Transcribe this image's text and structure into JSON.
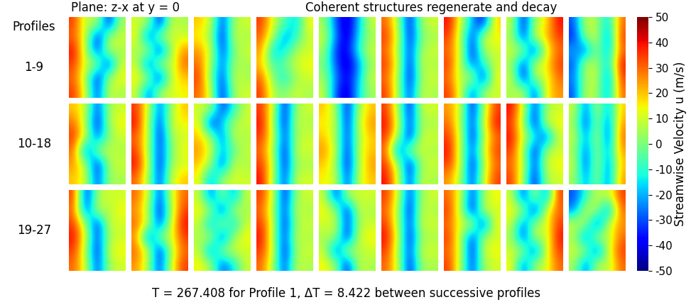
{
  "chart_data": {
    "type": "heatmap",
    "subtitle": "Plane: z-x at y = 0",
    "title": "Coherent structures regenerate and decay",
    "row_header": "Profiles",
    "row_labels": [
      "1-9",
      "10-18",
      "19-27"
    ],
    "xlabel": "T = 267.408 for Profile 1, ΔT = 8.422 between successive profiles",
    "colorbar_label": "Streamwise Velocity u (m/s)",
    "colorbar_range": [
      -50,
      50
    ],
    "colorbar_ticks": [
      -50,
      -40,
      -30,
      -20,
      -10,
      0,
      10,
      20,
      30,
      40,
      50
    ],
    "tick_labels": false,
    "panels": [
      [
        [
          35,
          5,
          10,
          -40,
          5
        ],
        [
          30,
          10,
          -40,
          5,
          10
        ],
        [
          40,
          5,
          -35,
          10,
          5
        ],
        [
          35,
          10,
          5,
          -40,
          10
        ],
        [
          30,
          5,
          -40,
          5,
          15
        ],
        [
          35,
          10,
          -35,
          10,
          5
        ]
      ],
      [
        [
          10,
          5,
          -40,
          10,
          5
        ],
        [
          15,
          -35,
          5,
          10,
          10
        ],
        [
          5,
          10,
          -40,
          5,
          25
        ],
        [
          10,
          -35,
          10,
          5,
          30
        ],
        [
          15,
          5,
          -40,
          10,
          20
        ],
        [
          10,
          -30,
          5,
          10,
          15
        ]
      ],
      [
        [
          20,
          10,
          -35,
          5,
          10
        ],
        [
          15,
          5,
          -40,
          10,
          5
        ],
        [
          25,
          10,
          -35,
          0,
          10
        ],
        [
          30,
          5,
          -30,
          5,
          5
        ],
        [
          35,
          0,
          -35,
          10,
          5
        ],
        [
          30,
          10,
          -40,
          5,
          10
        ]
      ],
      [
        [
          35,
          10,
          -5,
          -20,
          15
        ],
        [
          30,
          5,
          -25,
          -10,
          10
        ],
        [
          25,
          -20,
          -15,
          5,
          10
        ],
        [
          20,
          -10,
          0,
          10,
          15
        ],
        [
          30,
          0,
          -15,
          5,
          10
        ],
        [
          35,
          5,
          0,
          10,
          5
        ]
      ],
      [
        [
          5,
          -30,
          -45,
          -20,
          10
        ],
        [
          10,
          -25,
          -45,
          -15,
          5
        ],
        [
          5,
          -35,
          -40,
          -10,
          10
        ],
        [
          0,
          -30,
          -45,
          -25,
          5
        ],
        [
          5,
          -25,
          -40,
          -20,
          10
        ],
        [
          10,
          -30,
          -45,
          -15,
          5
        ]
      ],
      [
        [
          30,
          5,
          -40,
          5,
          10
        ],
        [
          35,
          10,
          -40,
          0,
          5
        ],
        [
          30,
          5,
          -35,
          5,
          10
        ],
        [
          35,
          10,
          -40,
          10,
          5
        ],
        [
          30,
          5,
          -40,
          5,
          10
        ],
        [
          35,
          5,
          -35,
          10,
          5
        ]
      ],
      [
        [
          40,
          10,
          -20,
          -40,
          20
        ],
        [
          35,
          5,
          -35,
          10,
          15
        ],
        [
          30,
          10,
          -40,
          5,
          10
        ],
        [
          35,
          5,
          -30,
          -10,
          10
        ],
        [
          30,
          5,
          10,
          -40,
          15
        ],
        [
          35,
          10,
          -30,
          5,
          10
        ]
      ],
      [
        [
          10,
          -40,
          5,
          15,
          40
        ],
        [
          5,
          -35,
          10,
          20,
          35
        ],
        [
          10,
          5,
          -40,
          10,
          30
        ],
        [
          5,
          -35,
          10,
          15,
          35
        ],
        [
          10,
          -40,
          5,
          10,
          30
        ],
        [
          5,
          10,
          -35,
          15,
          25
        ]
      ],
      [
        [
          -30,
          10,
          5,
          -20,
          30
        ],
        [
          -35,
          5,
          10,
          -30,
          35
        ],
        [
          -20,
          -30,
          5,
          -25,
          30
        ],
        [
          -30,
          10,
          5,
          -20,
          40
        ],
        [
          -25,
          5,
          10,
          -30,
          35
        ],
        [
          -30,
          10,
          5,
          -25,
          30
        ]
      ],
      [
        [
          20,
          10,
          -35,
          5,
          10
        ],
        [
          30,
          5,
          -40,
          5,
          15
        ],
        [
          35,
          10,
          -30,
          0,
          10
        ],
        [
          30,
          -35,
          5,
          10,
          5
        ],
        [
          25,
          5,
          -40,
          5,
          10
        ],
        [
          20,
          10,
          -35,
          5,
          5
        ]
      ],
      [
        [
          35,
          10,
          -30,
          5,
          20
        ],
        [
          40,
          5,
          -35,
          10,
          15
        ],
        [
          30,
          10,
          -40,
          5,
          10
        ],
        [
          35,
          5,
          -35,
          0,
          15
        ],
        [
          40,
          10,
          -40,
          5,
          10
        ],
        [
          30,
          5,
          -35,
          10,
          20
        ]
      ],
      [
        [
          10,
          5,
          -35,
          -10,
          10
        ],
        [
          15,
          -40,
          -15,
          5,
          10
        ],
        [
          20,
          5,
          -30,
          10,
          5
        ],
        [
          25,
          10,
          -20,
          -5,
          10
        ],
        [
          20,
          5,
          -35,
          10,
          5
        ],
        [
          15,
          -25,
          5,
          10,
          10
        ]
      ],
      [
        [
          35,
          10,
          -40,
          5,
          10
        ],
        [
          40,
          5,
          -40,
          10,
          5
        ],
        [
          35,
          10,
          -35,
          5,
          10
        ],
        [
          30,
          5,
          -40,
          10,
          10
        ],
        [
          35,
          10,
          -40,
          5,
          5
        ],
        [
          40,
          5,
          -35,
          10,
          10
        ]
      ],
      [
        [
          20,
          5,
          -40,
          5,
          20
        ],
        [
          15,
          10,
          -40,
          10,
          25
        ],
        [
          20,
          5,
          -35,
          5,
          20
        ],
        [
          25,
          10,
          -40,
          10,
          20
        ],
        [
          20,
          5,
          -40,
          5,
          25
        ],
        [
          15,
          10,
          -35,
          10,
          20
        ]
      ],
      [
        [
          35,
          5,
          -40,
          10,
          10
        ],
        [
          40,
          10,
          -35,
          5,
          5
        ],
        [
          35,
          5,
          -40,
          10,
          10
        ],
        [
          30,
          -35,
          5,
          10,
          5
        ],
        [
          35,
          5,
          -40,
          5,
          10
        ],
        [
          40,
          10,
          -35,
          10,
          5
        ]
      ],
      [
        [
          25,
          10,
          -40,
          5,
          35
        ],
        [
          30,
          5,
          -35,
          10,
          40
        ],
        [
          35,
          10,
          -40,
          5,
          30
        ],
        [
          40,
          5,
          -30,
          10,
          35
        ],
        [
          35,
          10,
          -40,
          5,
          30
        ],
        [
          25,
          5,
          -35,
          10,
          35
        ]
      ],
      [
        [
          40,
          10,
          -35,
          5,
          10
        ],
        [
          35,
          5,
          -40,
          10,
          15
        ],
        [
          40,
          10,
          -10,
          -35,
          10
        ],
        [
          35,
          5,
          -40,
          5,
          10
        ],
        [
          30,
          10,
          -35,
          10,
          15
        ],
        [
          35,
          5,
          -40,
          5,
          10
        ]
      ],
      [
        [
          10,
          -30,
          10,
          -25,
          20
        ],
        [
          5,
          -35,
          5,
          -30,
          25
        ],
        [
          10,
          -25,
          10,
          -35,
          30
        ],
        [
          5,
          -30,
          5,
          -25,
          25
        ],
        [
          10,
          -35,
          10,
          -30,
          20
        ],
        [
          5,
          -25,
          5,
          -30,
          25
        ]
      ],
      [
        [
          35,
          -40,
          5,
          10,
          10
        ],
        [
          30,
          -35,
          10,
          5,
          15
        ],
        [
          35,
          5,
          -40,
          10,
          10
        ],
        [
          40,
          10,
          -35,
          5,
          10
        ],
        [
          35,
          5,
          -40,
          10,
          15
        ],
        [
          30,
          10,
          -35,
          5,
          10
        ]
      ],
      [
        [
          30,
          10,
          -35,
          10,
          30
        ],
        [
          25,
          5,
          -40,
          5,
          35
        ],
        [
          30,
          10,
          -35,
          10,
          40
        ],
        [
          25,
          -35,
          5,
          10,
          35
        ],
        [
          30,
          10,
          -40,
          5,
          30
        ],
        [
          25,
          5,
          -35,
          10,
          35
        ]
      ],
      [
        [
          10,
          -30,
          5,
          -25,
          10
        ],
        [
          15,
          5,
          -35,
          10,
          5
        ],
        [
          10,
          -25,
          10,
          -20,
          10
        ],
        [
          5,
          10,
          -35,
          5,
          15
        ],
        [
          10,
          -30,
          5,
          10,
          10
        ],
        [
          15,
          5,
          -30,
          -15,
          10
        ]
      ],
      [
        [
          35,
          10,
          -40,
          5,
          10
        ],
        [
          30,
          5,
          -35,
          10,
          5
        ],
        [
          35,
          10,
          -40,
          5,
          10
        ],
        [
          40,
          5,
          -35,
          10,
          5
        ],
        [
          35,
          10,
          -40,
          5,
          10
        ],
        [
          30,
          5,
          -35,
          10,
          5
        ]
      ],
      [
        [
          10,
          -35,
          5,
          10,
          10
        ],
        [
          15,
          5,
          -40,
          10,
          5
        ],
        [
          10,
          10,
          -35,
          5,
          10
        ],
        [
          5,
          5,
          -40,
          10,
          15
        ],
        [
          10,
          -35,
          10,
          5,
          10
        ],
        [
          15,
          5,
          -40,
          10,
          5
        ]
      ],
      [
        [
          35,
          10,
          -35,
          5,
          10
        ],
        [
          30,
          5,
          -40,
          10,
          5
        ],
        [
          35,
          5,
          -35,
          10,
          10
        ],
        [
          40,
          10,
          -40,
          5,
          5
        ],
        [
          35,
          5,
          -35,
          10,
          10
        ],
        [
          30,
          10,
          -40,
          5,
          5
        ]
      ],
      [
        [
          30,
          10,
          -35,
          5,
          15
        ],
        [
          35,
          5,
          -40,
          10,
          10
        ],
        [
          30,
          10,
          10,
          -40,
          15
        ],
        [
          35,
          5,
          -35,
          5,
          10
        ],
        [
          30,
          10,
          -40,
          10,
          15
        ],
        [
          35,
          5,
          -35,
          5,
          10
        ]
      ],
      [
        [
          10,
          -35,
          10,
          -30,
          35
        ],
        [
          15,
          5,
          -40,
          10,
          30
        ],
        [
          10,
          -30,
          5,
          10,
          35
        ],
        [
          5,
          -35,
          10,
          5,
          40
        ],
        [
          10,
          5,
          -35,
          10,
          35
        ],
        [
          15,
          -30,
          5,
          10,
          30
        ]
      ],
      [
        [
          -30,
          -10,
          10,
          5,
          35
        ],
        [
          -25,
          10,
          5,
          -30,
          30
        ],
        [
          10,
          5,
          -35,
          10,
          25
        ],
        [
          5,
          -30,
          10,
          5,
          30
        ],
        [
          10,
          5,
          -35,
          10,
          35
        ],
        [
          5,
          -30,
          10,
          5,
          30
        ]
      ]
    ]
  }
}
